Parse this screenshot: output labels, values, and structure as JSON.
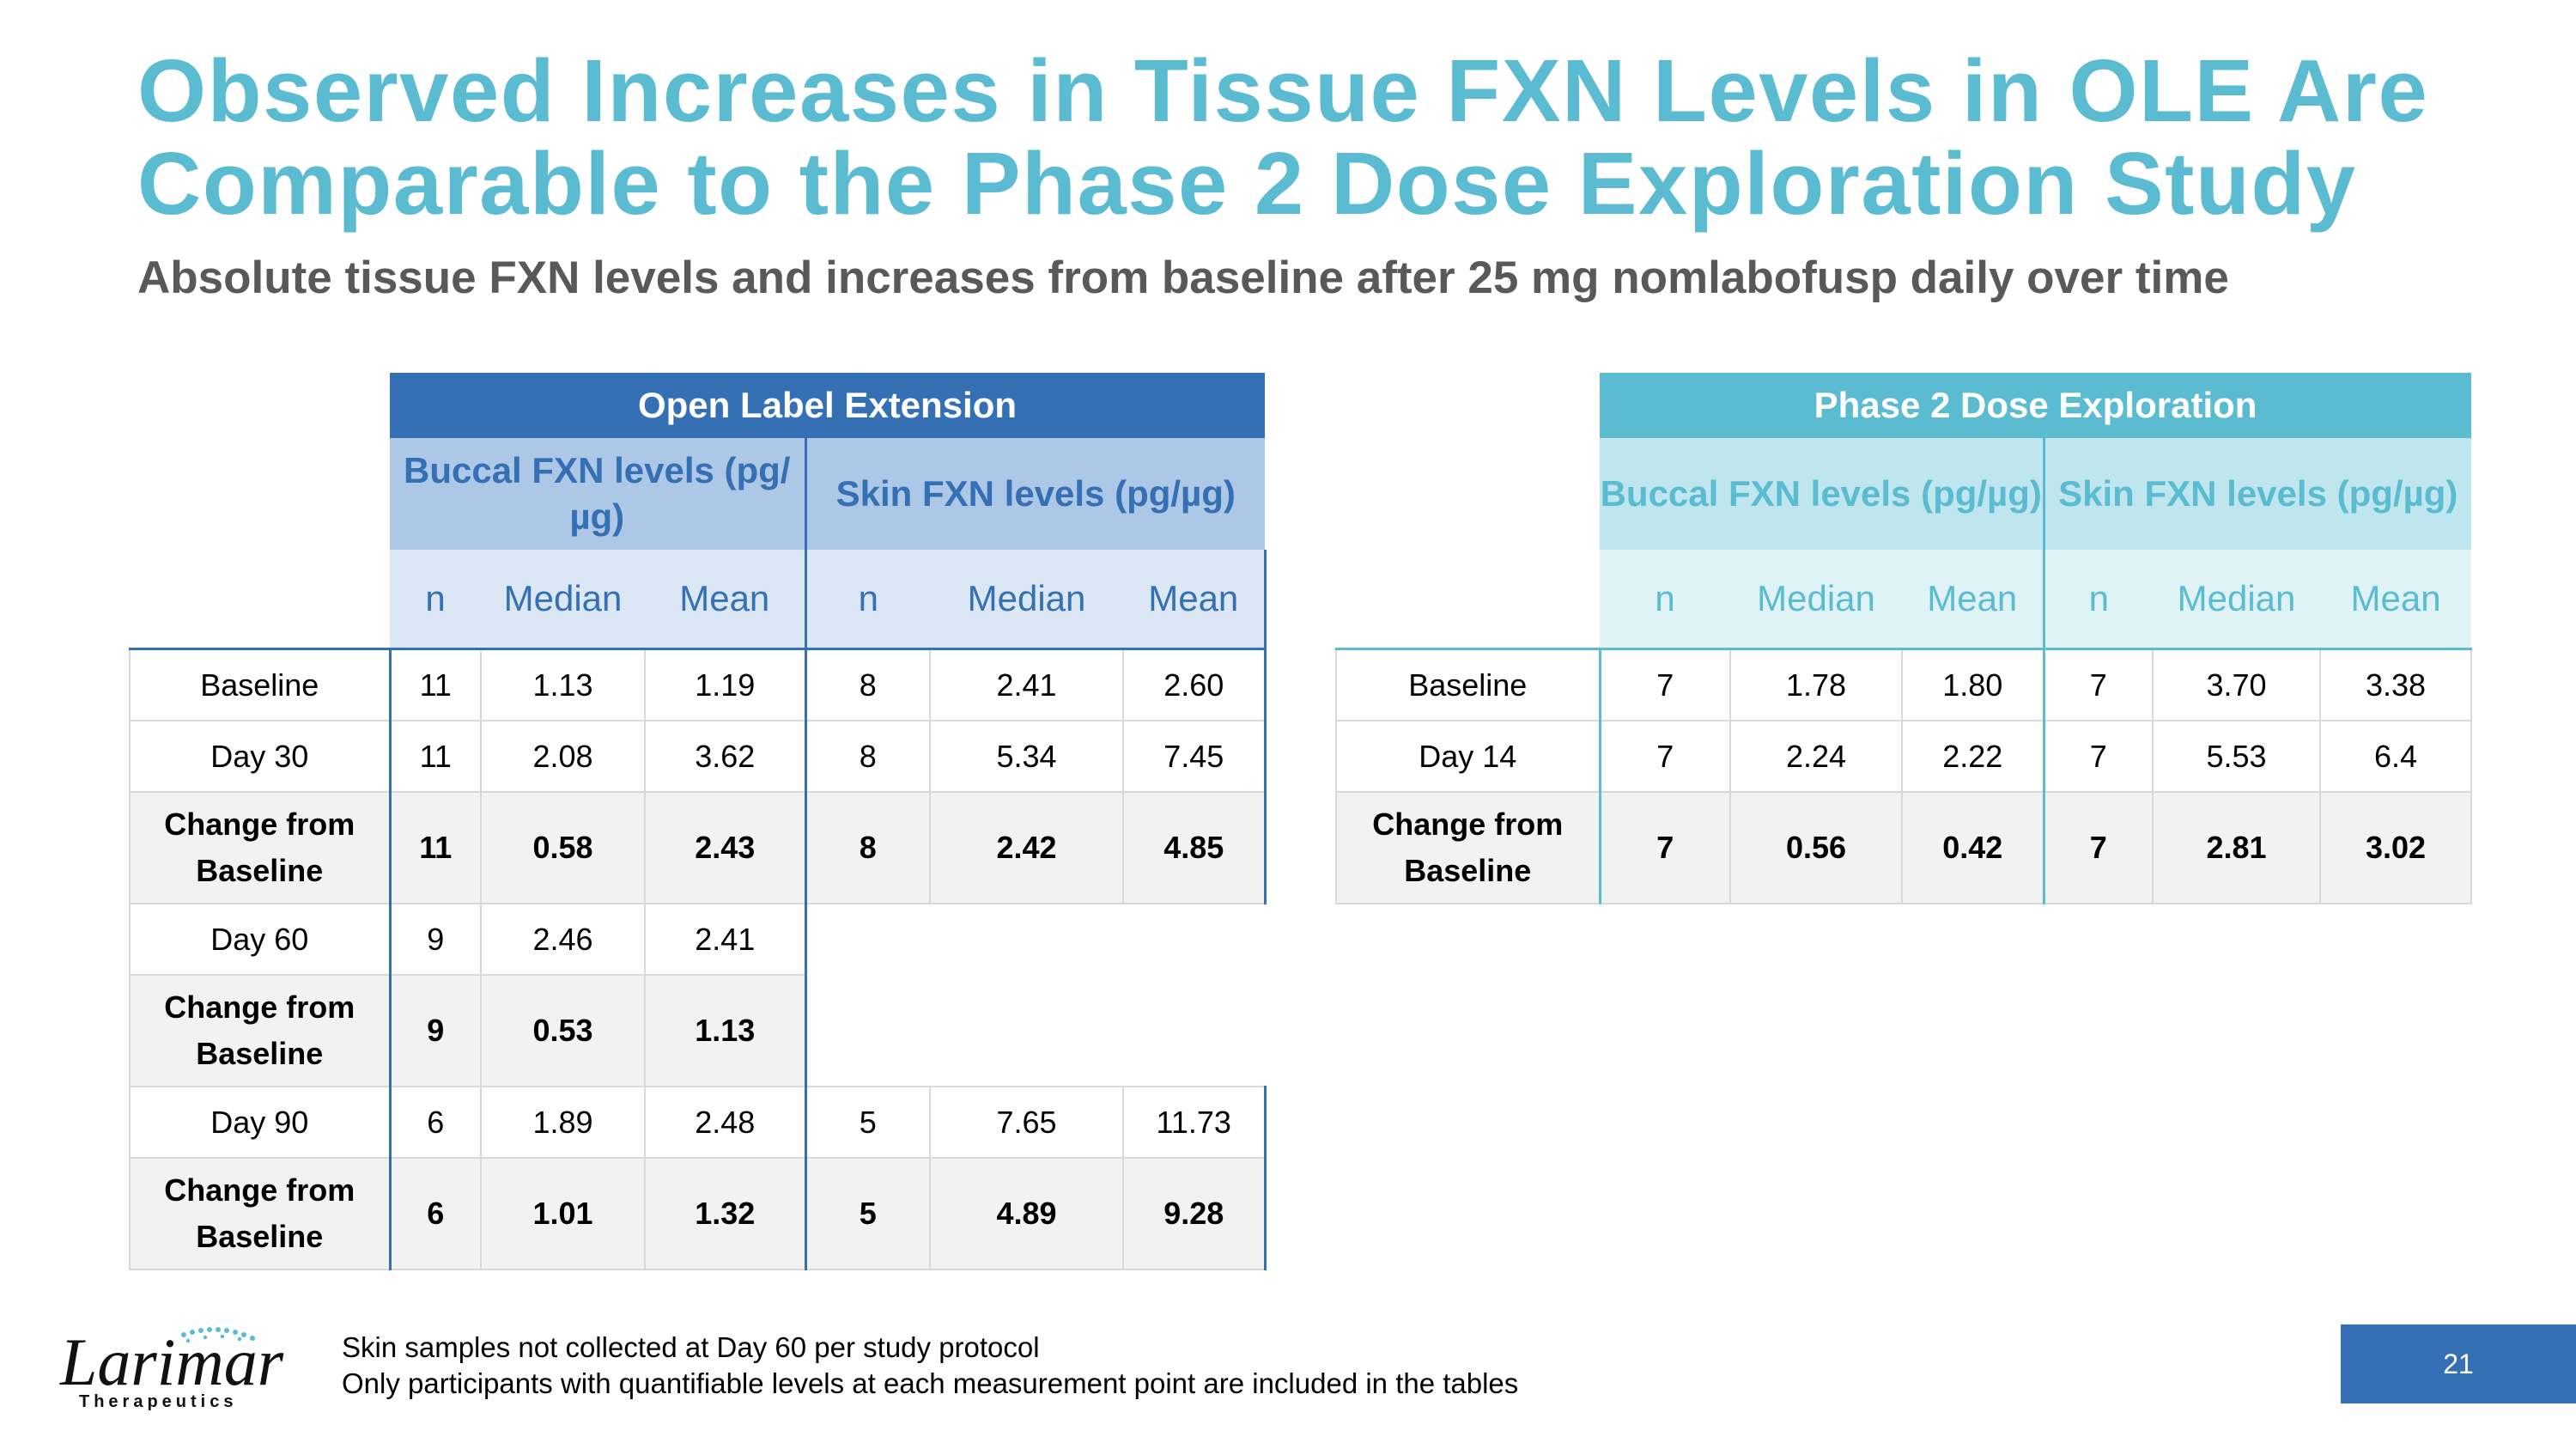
{
  "title": "Observed Increases in Tissue FXN Levels in OLE Are Comparable to the Phase 2 Dose Exploration Study",
  "subtitle": "Absolute tissue FXN levels and increases from baseline after 25 mg nomlabofusp daily over time",
  "colors": {
    "title": "#5bbcd1",
    "ole_primary": "#3570b4",
    "phase2_primary": "#5bbcd1"
  },
  "ole_table": {
    "header": "Open Label Extension",
    "groups": [
      "Buccal FXN levels (pg/µg)",
      "Skin FXN levels (pg/µg)"
    ],
    "cols": [
      "n",
      "Median",
      "Mean",
      "n",
      "Median",
      "Mean"
    ],
    "rows": [
      {
        "label": "Baseline",
        "cells": [
          "11",
          "1.13",
          "1.19",
          "8",
          "2.41",
          "2.60"
        ]
      },
      {
        "label": "Day 30",
        "cells": [
          "11",
          "2.08",
          "3.62",
          "8",
          "5.34",
          "7.45"
        ]
      },
      {
        "label": "Change from Baseline",
        "cells": [
          "11",
          "0.58",
          "2.43",
          "8",
          "2.42",
          "4.85"
        ]
      },
      {
        "label": "Day 60",
        "cells": [
          "9",
          "2.46",
          "2.41"
        ]
      },
      {
        "label": "Change from Baseline",
        "cells": [
          "9",
          "0.53",
          "1.13"
        ]
      },
      {
        "label": "Day 90",
        "cells": [
          "6",
          "1.89",
          "2.48",
          "5",
          "7.65",
          "11.73"
        ]
      },
      {
        "label": "Change from Baseline",
        "cells": [
          "6",
          "1.01",
          "1.32",
          "5",
          "4.89",
          "9.28"
        ]
      }
    ]
  },
  "phase2_table": {
    "header": "Phase 2 Dose Exploration",
    "groups": [
      "Buccal FXN levels (pg/µg)",
      "Skin FXN levels (pg/µg)"
    ],
    "cols": [
      "n",
      "Median",
      "Mean",
      "n",
      "Median",
      "Mean"
    ],
    "rows": [
      {
        "label": "Baseline",
        "cells": [
          "7",
          "1.78",
          "1.80",
          "7",
          "3.70",
          "3.38"
        ]
      },
      {
        "label": "Day 14",
        "cells": [
          "7",
          "2.24",
          "2.22",
          "7",
          "5.53",
          "6.4"
        ]
      },
      {
        "label": "Change from Baseline",
        "cells": [
          "7",
          "0.56",
          "0.42",
          "7",
          "2.81",
          "3.02"
        ]
      }
    ]
  },
  "footnotes": [
    "Skin samples not collected at Day 60 per study protocol",
    "Only participants with quantifiable levels at each measurement point are included in the tables"
  ],
  "logo": {
    "name": "Larimar",
    "tagline": "Therapeutics"
  },
  "page_number": "21"
}
